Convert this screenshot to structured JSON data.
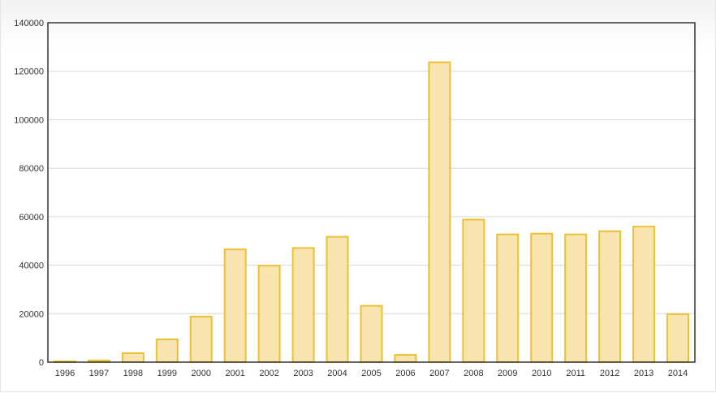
{
  "chart_data": {
    "type": "bar",
    "categories": [
      "1996",
      "1997",
      "1998",
      "1999",
      "2000",
      "2001",
      "2002",
      "2003",
      "2004",
      "2005",
      "2006",
      "2007",
      "2008",
      "2009",
      "2010",
      "2011",
      "2012",
      "2013",
      "2014"
    ],
    "values": [
      300,
      700,
      3700,
      9400,
      18800,
      46500,
      39800,
      47100,
      51700,
      23200,
      3000,
      123700,
      58800,
      52700,
      53000,
      52700,
      54000,
      55900,
      19800
    ],
    "ylim": [
      0,
      140000
    ],
    "yticks": [
      "0",
      "20000",
      "40000",
      "60000",
      "80000",
      "100000",
      "120000",
      "140000"
    ],
    "title": "",
    "xlabel": "",
    "ylabel": "",
    "grid": true,
    "colors": {
      "bar_fill": "#f8e4ae",
      "bar_stroke": "#ecc035",
      "axis": "#333333",
      "grid": "#d8d8d8"
    }
  }
}
